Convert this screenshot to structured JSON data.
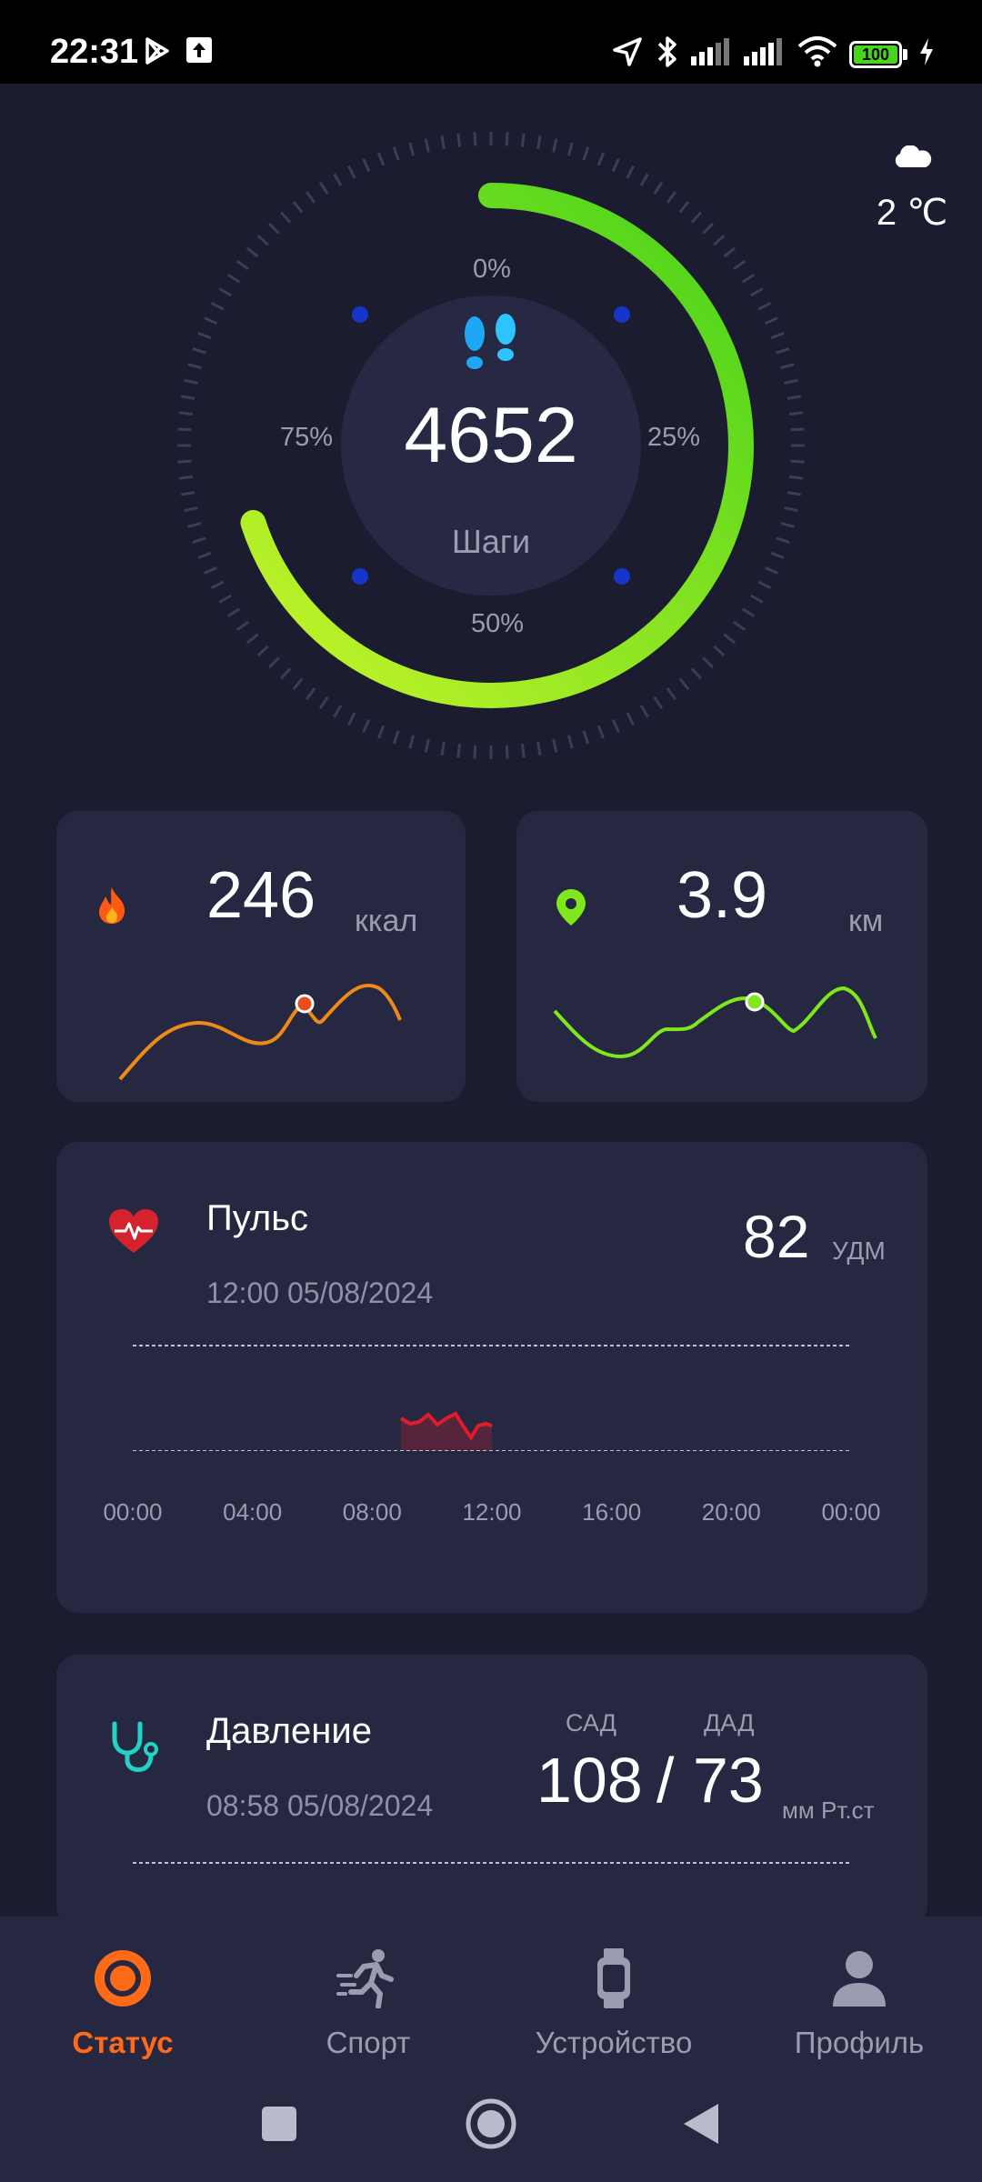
{
  "status_bar": {
    "time": "22:31",
    "battery": "100",
    "icons": [
      "play-store-icon",
      "upload-icon",
      "location-arrow-icon",
      "bluetooth-icon",
      "signal-icon",
      "signal-icon",
      "wifi-icon",
      "battery-icon",
      "charging-icon"
    ]
  },
  "weather": {
    "icon": "cloud-icon",
    "temp": "2 ℃"
  },
  "steps": {
    "value": "4652",
    "label": "Шаги",
    "pct_top": "0%",
    "pct_right": "25%",
    "pct_bottom": "50%",
    "pct_left": "75%",
    "progress_fraction": 0.7,
    "colors": {
      "start": "#45d21a",
      "end": "#c8f52a"
    }
  },
  "calories": {
    "value": "246",
    "unit": "ккал",
    "icon": "fire-icon",
    "line_color": "#f08a17"
  },
  "distance": {
    "value": "3.9",
    "unit": "км",
    "icon": "location-pin-icon",
    "line_color": "#7ee81d"
  },
  "pulse": {
    "title": "Пульс",
    "datetime": "12:00 05/08/2024",
    "value": "82",
    "unit": "УДМ",
    "icon": "heart-icon",
    "ticks": [
      "00:00",
      "04:00",
      "08:00",
      "12:00",
      "16:00",
      "20:00",
      "00:00"
    ],
    "line_color": "#e21a2a"
  },
  "pressure": {
    "title": "Давление",
    "datetime": "08:58 05/08/2024",
    "sys_label": "САД",
    "dia_label": "ДАД",
    "sys_value": "108",
    "separator": "/",
    "dia_value": "73",
    "unit": "мм Рт.ст",
    "icon": "stethoscope-icon"
  },
  "nav": {
    "items": [
      {
        "label": "Статус",
        "icon": "status-ring-icon",
        "active": true
      },
      {
        "label": "Спорт",
        "icon": "running-icon",
        "active": false
      },
      {
        "label": "Устройство",
        "icon": "watch-icon",
        "active": false
      },
      {
        "label": "Профиль",
        "icon": "person-icon",
        "active": false
      }
    ],
    "accent": "#ff6a18"
  },
  "system_nav": [
    "recents-square-icon",
    "home-circle-icon",
    "back-triangle-icon"
  ]
}
